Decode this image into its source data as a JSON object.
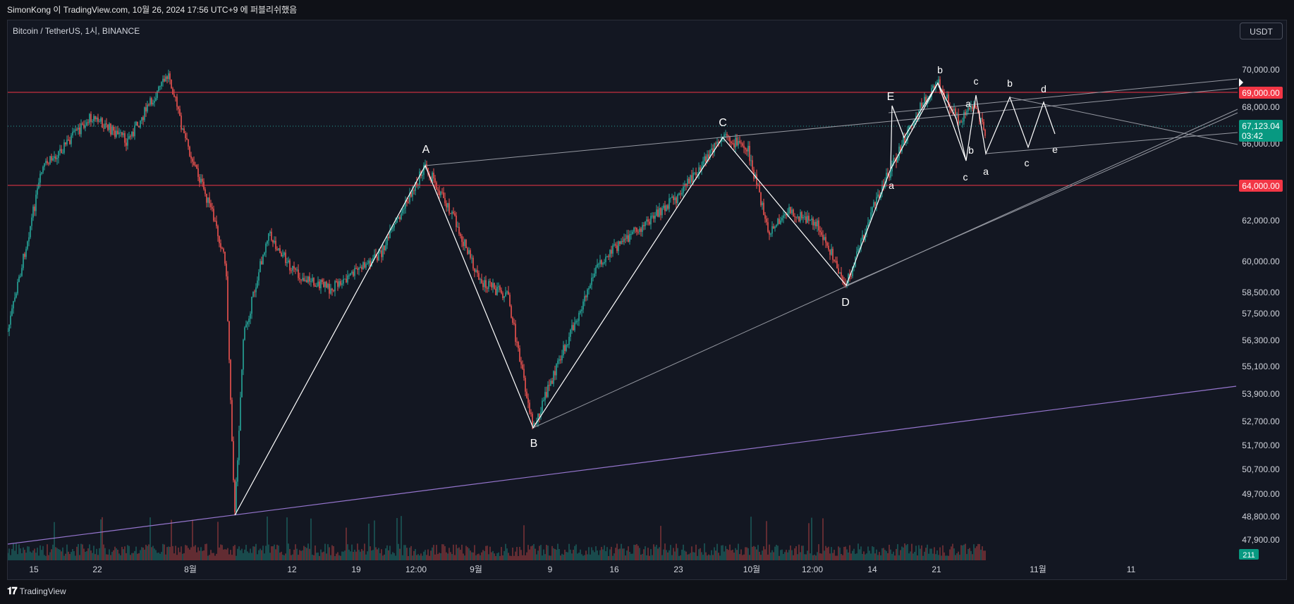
{
  "header": {
    "author_line": "SimonKong 이 TradingView.com, 10월 26, 2024 17:56 UTC+9 에 퍼블리쉬했음"
  },
  "chart": {
    "symbol_line": "Bitcoin / TetherUS, 1시, BINANCE",
    "currency_button": "USDT",
    "current_price": "67,123.04",
    "countdown": "03:42",
    "volume_badge": "211"
  },
  "footer": {
    "brand": "TradingView"
  },
  "colors": {
    "bg": "#131722",
    "up": "#26a69a",
    "down": "#ef5350",
    "resistance": "#f23645",
    "support_line": "#9575cd"
  },
  "chart_data": {
    "type": "candlestick",
    "y_ticks": [
      "70,000.00",
      "68,000.00",
      "66,000.00",
      "62,000.00",
      "60,000.00",
      "58,500.00",
      "57,500.00",
      "56,300.00",
      "55,100.00",
      "53,900.00",
      "52,700.00",
      "51,700.00",
      "50,700.00",
      "49,700.00",
      "48,800.00",
      "47,900.00"
    ],
    "x_ticks": [
      "15",
      "22",
      "8월",
      "12",
      "19",
      "12:00",
      "9월",
      "9",
      "16",
      "23",
      "10월",
      "12:00",
      "14",
      "21",
      "11월",
      "11"
    ],
    "price_levels": [
      {
        "label": "69,000.00",
        "value": 69000
      },
      {
        "label": "64,000.00",
        "value": 64000
      }
    ],
    "wave_points": [
      {
        "label": "A",
        "price": 65200
      },
      {
        "label": "B",
        "price": 52600
      },
      {
        "label": "C",
        "price": 66600
      },
      {
        "label": "D",
        "price": 58800
      },
      {
        "label": "E",
        "price": 68000
      }
    ],
    "sub_wave_labels": [
      "a",
      "b",
      "c",
      "a",
      "b",
      "c",
      "a",
      "b",
      "c",
      "d",
      "e"
    ]
  }
}
